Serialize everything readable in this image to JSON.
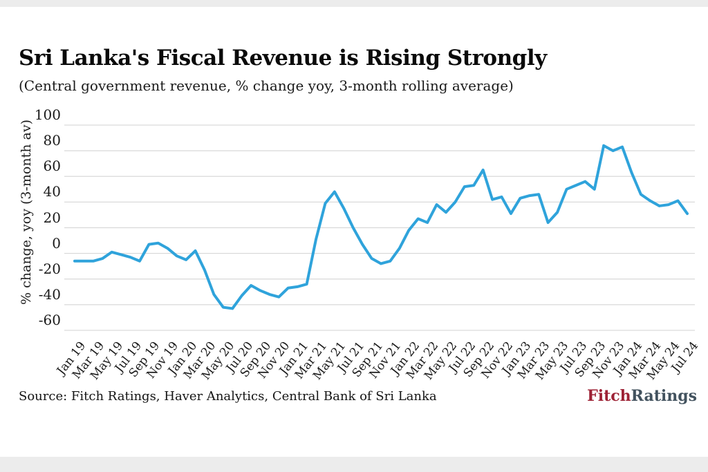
{
  "chart": {
    "title": "Sri Lanka's Fiscal Revenue is Rising Strongly",
    "subtitle": "(Central government revenue, % change yoy, 3-month rolling average)",
    "ylabel": "% change, yoy (3-month av)"
  },
  "footer": {
    "source": "Source: Fitch Ratings, Haver Analytics, Central Bank of Sri Lanka",
    "logo_fitch": "Fitch",
    "logo_ratings": "Ratings"
  },
  "colors": {
    "line": "#2fa3db",
    "grid": "#d9d9d9",
    "text": "#1a1a1a",
    "fitch_red": "#9d2235",
    "ratings_slate": "#42525e"
  },
  "chart_data": {
    "type": "line",
    "title": "Sri Lanka's Fiscal Revenue is Rising Strongly",
    "subtitle": "(Central government revenue, % change yoy, 3-month rolling average)",
    "ylabel": "% change, yoy (3-month av)",
    "xlabel": "",
    "ylim": [
      -60,
      100
    ],
    "yticks": [
      100,
      80,
      60,
      40,
      20,
      0,
      -20,
      -40,
      -60
    ],
    "grid": "horizontal",
    "legend": "none",
    "xtick_every": 2,
    "x": [
      "Jan 19",
      "Feb 19",
      "Mar 19",
      "Apr 19",
      "May 19",
      "Jun 19",
      "Jul 19",
      "Aug 19",
      "Sep 19",
      "Oct 19",
      "Nov 19",
      "Dec 19",
      "Jan 20",
      "Feb 20",
      "Mar 20",
      "Apr 20",
      "May 20",
      "Jun 20",
      "Jul 20",
      "Aug 20",
      "Sep 20",
      "Oct 20",
      "Nov 20",
      "Dec 20",
      "Jan 21",
      "Feb 21",
      "Mar 21",
      "Apr 21",
      "May 21",
      "Jun 21",
      "Jul 21",
      "Aug 21",
      "Sep 21",
      "Oct 21",
      "Nov 21",
      "Dec 21",
      "Jan 22",
      "Feb 22",
      "Mar 22",
      "Apr 22",
      "May 22",
      "Jun 22",
      "Jul 22",
      "Aug 22",
      "Sep 22",
      "Oct 22",
      "Nov 22",
      "Dec 22",
      "Jan 23",
      "Feb 23",
      "Mar 23",
      "Apr 23",
      "May 23",
      "Jun 23",
      "Jul 23",
      "Aug 23",
      "Sep 23",
      "Oct 23",
      "Nov 23",
      "Dec 23",
      "Jan 24",
      "Feb 24",
      "Mar 24",
      "Apr 24",
      "May 24",
      "Jun 24",
      "Jul 24"
    ],
    "values": [
      -6,
      -6,
      -6,
      -4,
      1,
      -1,
      -3,
      -6,
      7,
      8,
      4,
      -2,
      -5,
      2,
      -13,
      -32,
      -42,
      -43,
      -33,
      -25,
      -29,
      -32,
      -34,
      -27,
      -26,
      -24,
      11,
      39,
      48,
      35,
      20,
      7,
      -4,
      -8,
      -6,
      4,
      18,
      27,
      24,
      38,
      32,
      40,
      52,
      53,
      65,
      42,
      44,
      31,
      43,
      45,
      46,
      24,
      32,
      50,
      53,
      56,
      50,
      84,
      80,
      83,
      63,
      46,
      41,
      37,
      38,
      41,
      31
    ]
  }
}
